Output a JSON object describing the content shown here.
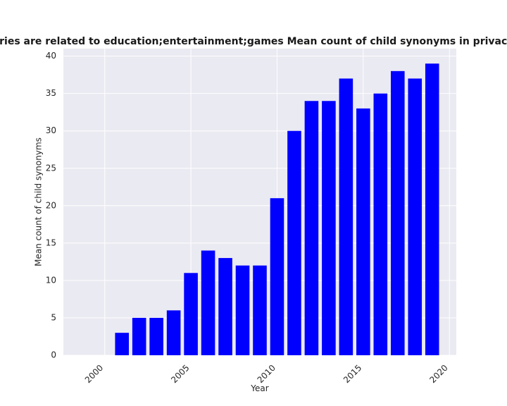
{
  "chart_data": {
    "type": "bar",
    "title": "Categories are related to education;entertainment;games Mean count of child synonyms in privacy policies",
    "xlabel": "Year",
    "ylabel": "Mean count of child synonyms",
    "x": [
      2001,
      2002,
      2003,
      2004,
      2005,
      2006,
      2007,
      2008,
      2009,
      2010,
      2011,
      2012,
      2013,
      2014,
      2015,
      2016,
      2017,
      2018,
      2019
    ],
    "values": [
      3,
      5,
      5,
      6,
      11,
      14,
      13,
      12,
      12,
      21,
      30,
      34,
      34,
      37,
      33,
      35,
      38,
      37,
      39
    ],
    "xlim": [
      1997.6,
      2020.4
    ],
    "ylim": [
      0,
      41
    ],
    "xticks": [
      2000,
      2005,
      2010,
      2015,
      2020
    ],
    "yticks": [
      0,
      5,
      10,
      15,
      20,
      25,
      30,
      35,
      40
    ],
    "grid": true,
    "bar_color": "#0000ff",
    "background_color": "#eaeaf2",
    "grid_color": "#ffffff"
  }
}
